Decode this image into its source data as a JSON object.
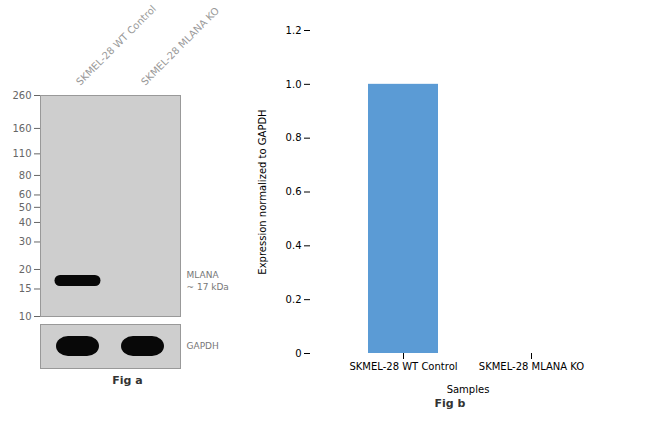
{
  "chart_data": [
    {
      "type": "western_blot",
      "categories": [
        "SKMEL-28 WT Control",
        "SKMEL-28 MLANA KO"
      ],
      "values": [
        17,
        null
      ],
      "log": "y",
      "ylim": [
        10,
        260
      ],
      "yticks": [
        260,
        160,
        110,
        80,
        60,
        50,
        40,
        30,
        20,
        15,
        10
      ],
      "annotations": [
        "MLANA\n~ 17 kDa",
        "GAPDH",
        "Fig a"
      ]
    },
    {
      "type": "bar",
      "categories": [
        "SKMEL-28 WT Control",
        "SKMEL-28 MLANA KO"
      ],
      "values": [
        1.0,
        0.0
      ],
      "color": "#5b9bd5",
      "xlabel": "Samples",
      "ylabel": "Expression normalized to GAPDH",
      "ylim": [
        0,
        1.2
      ],
      "yticks": [
        0,
        0.2,
        0.4,
        0.6,
        0.8,
        {
          "value": 1,
          "label": "1.0"
        },
        1.2
      ],
      "annotations": [
        "Fig b"
      ]
    }
  ]
}
